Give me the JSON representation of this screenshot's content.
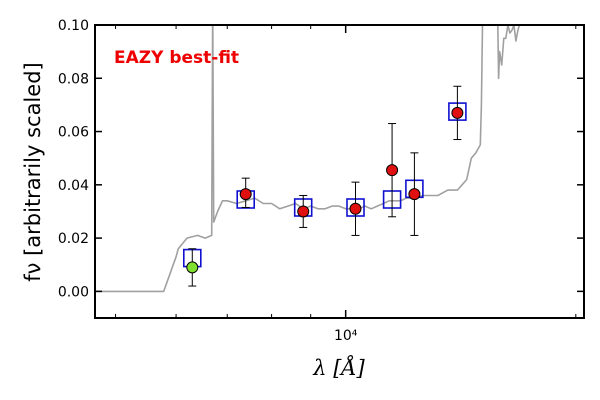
{
  "chart_data": {
    "type": "scatter",
    "title": "",
    "annotation": "EAZY best-fit",
    "xlabel": "λ [Å]",
    "ylabel": "fν [arbitrarily scaled]",
    "xscale": "log",
    "xlim": [
      4700,
      20500
    ],
    "ylim": [
      -0.01,
      0.1
    ],
    "xticks": [
      {
        "value": 10000,
        "label": "10⁴"
      }
    ],
    "yticks": [
      {
        "value": 0.0,
        "label": "0.00"
      },
      {
        "value": 0.02,
        "label": "0.02"
      },
      {
        "value": 0.04,
        "label": "0.04"
      },
      {
        "value": 0.06,
        "label": "0.06"
      },
      {
        "value": 0.08,
        "label": "0.08"
      },
      {
        "value": 0.1,
        "label": "0.10"
      }
    ],
    "grid": false,
    "colors": {
      "sed_line": "#a0a0a0",
      "model_box": "#1010d0",
      "point_fill": "#e01010",
      "upper_point_fill": "#7fe030",
      "error_bar": "#000000",
      "annotation": "#ee0000"
    },
    "sed": {
      "x": [
        4700,
        5780,
        6000,
        6040,
        6200,
        6400,
        6550,
        6680,
        6700,
        6720,
        6800,
        6900,
        7000,
        7200,
        7400,
        7600,
        7800,
        8000,
        8200,
        8400,
        8600,
        8800,
        9000,
        9200,
        9400,
        9600,
        9800,
        10000,
        10200,
        10400,
        10600,
        10800,
        11000,
        11200,
        11400,
        11600,
        11800,
        12000,
        12200,
        12400,
        12600,
        12800,
        13000,
        13200,
        13400,
        13600,
        13800,
        14000,
        14200,
        14400,
        14600,
        14800,
        15000,
        15050,
        15100,
        15200,
        15400,
        15600,
        15800,
        15850,
        15900,
        16000,
        16100,
        16200,
        16300,
        16400,
        16500,
        16600,
        16700,
        16800,
        17000,
        17200,
        17400,
        17600
      ],
      "y": [
        0.0,
        0.0,
        0.013,
        0.016,
        0.02,
        0.021,
        0.02,
        0.021,
        0.108,
        0.026,
        0.03,
        0.034,
        0.034,
        0.033,
        0.034,
        0.035,
        0.033,
        0.033,
        0.031,
        0.032,
        0.033,
        0.031,
        0.032,
        0.031,
        0.031,
        0.032,
        0.032,
        0.031,
        0.031,
        0.031,
        0.032,
        0.031,
        0.032,
        0.033,
        0.034,
        0.034,
        0.034,
        0.035,
        0.035,
        0.035,
        0.036,
        0.036,
        0.036,
        0.036,
        0.037,
        0.038,
        0.038,
        0.038,
        0.04,
        0.042,
        0.05,
        0.052,
        0.055,
        0.07,
        0.1,
        0.103,
        0.101,
        0.103,
        0.108,
        0.08,
        0.09,
        0.085,
        0.095,
        0.095,
        0.1,
        0.097,
        0.098,
        0.1,
        0.094,
        0.098,
        0.103,
        0.105,
        0.108,
        0.11
      ]
    },
    "model": [
      {
        "x": 6300,
        "y": 0.0125
      },
      {
        "x": 7400,
        "y": 0.0345
      },
      {
        "x": 8800,
        "y": 0.0315
      },
      {
        "x": 10300,
        "y": 0.0315
      },
      {
        "x": 11500,
        "y": 0.0345
      },
      {
        "x": 12300,
        "y": 0.0385
      },
      {
        "x": 14000,
        "y": 0.0675
      }
    ],
    "points": [
      {
        "x": 6300,
        "y": 0.009,
        "yerr_low": 0.007,
        "yerr_high": 0.007,
        "flag": "low"
      },
      {
        "x": 7400,
        "y": 0.0365,
        "yerr_low": 0.005,
        "yerr_high": 0.006
      },
      {
        "x": 8800,
        "y": 0.03,
        "yerr_low": 0.006,
        "yerr_high": 0.006
      },
      {
        "x": 10300,
        "y": 0.031,
        "yerr_low": 0.01,
        "yerr_high": 0.01
      },
      {
        "x": 11500,
        "y": 0.0455,
        "yerr_low": 0.0175,
        "yerr_high": 0.0175
      },
      {
        "x": 12300,
        "y": 0.0365,
        "yerr_low": 0.0155,
        "yerr_high": 0.0155
      },
      {
        "x": 14000,
        "y": 0.067,
        "yerr_low": 0.01,
        "yerr_high": 0.01
      }
    ]
  }
}
